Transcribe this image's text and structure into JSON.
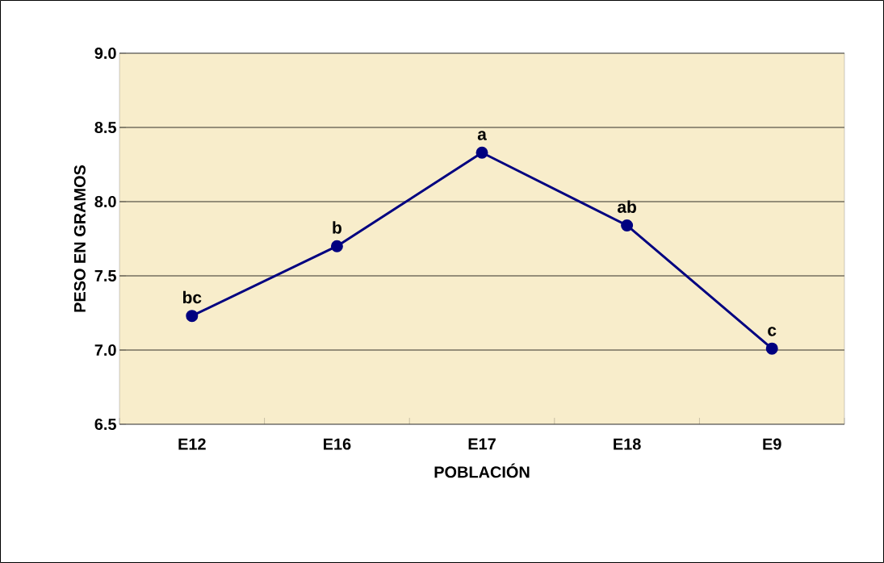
{
  "chart_data": {
    "type": "line",
    "xlabel": "POBLACIÓN",
    "ylabel": "PESO EN GRAMOS",
    "categories": [
      "E12",
      "E16",
      "E17",
      "E18",
      "E9"
    ],
    "series": [
      {
        "color": "#000080",
        "values": [
          7.23,
          7.7,
          8.33,
          7.84,
          7.01
        ]
      }
    ],
    "ylim": [
      6.5,
      9.0
    ],
    "yticks": [
      {
        "value": 6.5,
        "label": "6.5"
      },
      {
        "value": 7.0,
        "label": "7.0"
      },
      {
        "value": 7.5,
        "label": "7.5"
      },
      {
        "value": 8.0,
        "label": "8.0"
      },
      {
        "value": 8.5,
        "label": "8.5"
      },
      {
        "value": 9.0,
        "label": "9.0"
      }
    ],
    "grid": "y",
    "marker": "circle",
    "line_style": "solid",
    "annotations": [
      {
        "text": "bc",
        "x": "E12",
        "y": 7.23
      },
      {
        "text": "b",
        "x": "E16",
        "y": 7.7
      },
      {
        "text": "a",
        "x": "E17",
        "y": 8.33
      },
      {
        "text": "ab",
        "x": "E18",
        "y": 7.84
      },
      {
        "text": "c",
        "x": "E9",
        "y": 7.01
      }
    ]
  }
}
